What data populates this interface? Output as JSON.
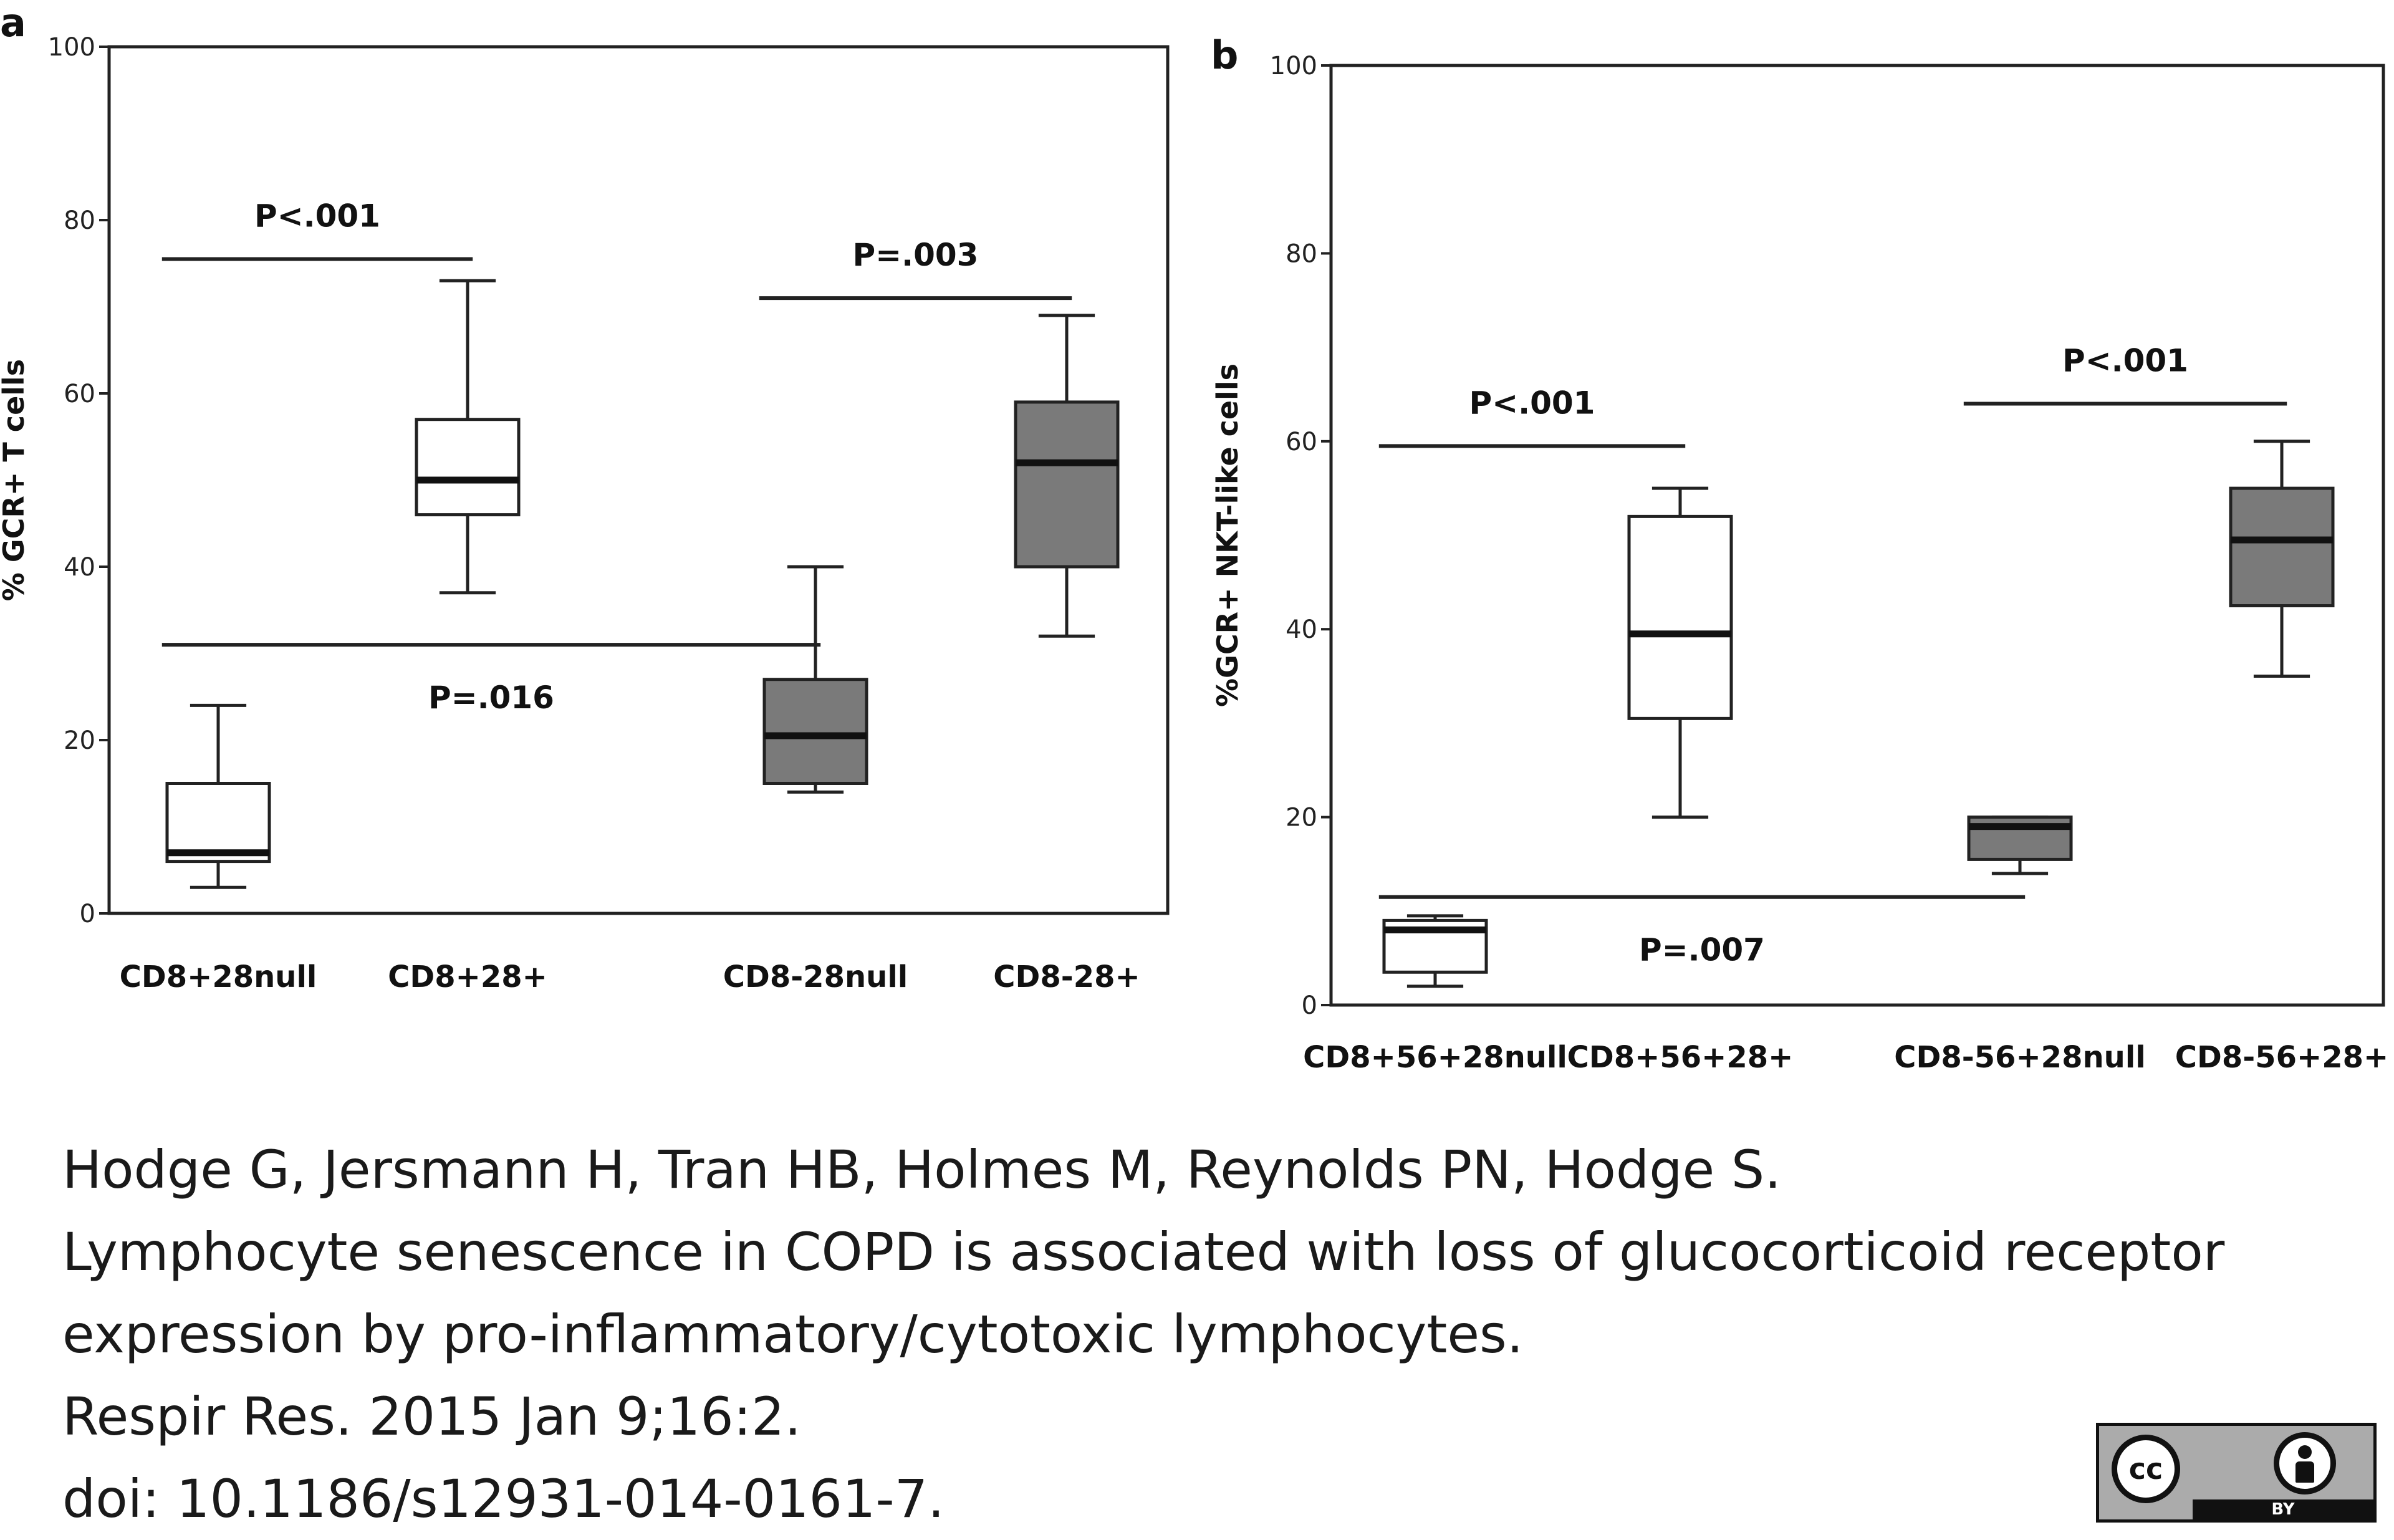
{
  "chart_data": [
    {
      "panel": "a",
      "type": "box",
      "ylabel": "% GCR+ T cells",
      "ylim": [
        0,
        100
      ],
      "yticks": [
        0,
        20,
        40,
        60,
        80,
        100
      ],
      "categories": [
        "CD8+28null",
        "CD8+28+",
        "CD8-28null",
        "CD8-28+"
      ],
      "boxes": [
        {
          "name": "CD8+28null",
          "min": 3,
          "q1": 6,
          "median": 7,
          "q3": 15,
          "max": 24,
          "fill": "#ffffff"
        },
        {
          "name": "CD8+28+",
          "min": 37,
          "q1": 46,
          "median": 50,
          "q3": 57,
          "max": 73,
          "fill": "#ffffff"
        },
        {
          "name": "CD8-28null",
          "min": 14,
          "q1": 15,
          "median": 20.5,
          "q3": 27,
          "max": 40,
          "fill": "#7a7a7a"
        },
        {
          "name": "CD8-28+",
          "min": 32,
          "q1": 40,
          "median": 52,
          "q3": 59,
          "max": 69,
          "fill": "#7a7a7a"
        }
      ],
      "comparisons": [
        {
          "label": "P<.001",
          "from": 0,
          "to": 1,
          "y": 75.5,
          "label_pos": "above"
        },
        {
          "label": "P=.003",
          "from": 2,
          "to": 3,
          "y": 71,
          "label_pos": "above"
        },
        {
          "label": "P=.016",
          "from": 0,
          "to": 2,
          "y": 31,
          "label_pos": "below"
        }
      ]
    },
    {
      "panel": "b",
      "type": "box",
      "ylabel": "%GCR+ NKT-like cells",
      "ylim": [
        0,
        100
      ],
      "yticks": [
        0,
        20,
        40,
        60,
        80,
        100
      ],
      "categories": [
        "CD8+56+28null",
        "CD8+56+28+",
        "CD8-56+28null",
        "CD8-56+28+"
      ],
      "boxes": [
        {
          "name": "CD8+56+28null",
          "min": 2,
          "q1": 3.5,
          "median": 8,
          "q3": 9,
          "max": 9.5,
          "fill": "#ffffff"
        },
        {
          "name": "CD8+56+28+",
          "min": 20,
          "q1": 30.5,
          "median": 39.5,
          "q3": 52,
          "max": 55,
          "fill": "#ffffff"
        },
        {
          "name": "CD8-56+28null",
          "min": 14,
          "q1": 15.5,
          "median": 19,
          "q3": 20,
          "max": 20,
          "fill": "#7a7a7a"
        },
        {
          "name": "CD8-56+28+",
          "min": 35,
          "q1": 42.5,
          "median": 49.5,
          "q3": 55,
          "max": 60,
          "fill": "#7a7a7a"
        }
      ],
      "comparisons": [
        {
          "label": "P<.001",
          "from": 0,
          "to": 1,
          "y": 59.5,
          "label_pos": "above"
        },
        {
          "label": "P<.001",
          "from": 2,
          "to": 3,
          "y": 64,
          "label_pos": "above"
        },
        {
          "label": "P=.007",
          "from": 0,
          "to": 2,
          "y": 11.5,
          "label_pos": "below"
        }
      ]
    }
  ],
  "citation": {
    "authors": "Hodge G, Jersmann H, Tran HB, Holmes M, Reynolds PN, Hodge S.",
    "title_line1": "Lymphocyte senescence in COPD is associated with loss of glucocorticoid receptor",
    "title_line2": "expression by pro-inflammatory/cytotoxic lymphocytes.",
    "journal": "Respir Res. 2015 Jan 9;16:2.",
    "doi": "doi: 10.1186/s12931-014-0161-7."
  },
  "license_badge": {
    "cc": "cc",
    "by": "BY"
  }
}
